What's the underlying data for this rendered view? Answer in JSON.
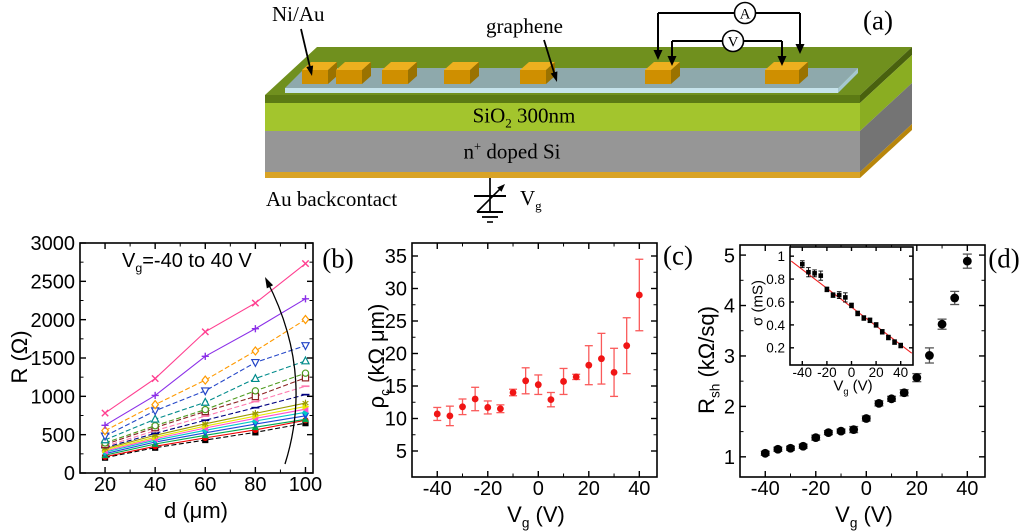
{
  "figure": {
    "panel_labels": {
      "a": "(a)",
      "b": "(b)",
      "c": "(c)",
      "d": "(d)"
    }
  },
  "device": {
    "labels": {
      "ni_au": "Ni/Au",
      "graphene": "graphene",
      "oxide": {
        "pre": "SiO",
        "sub": "2",
        "post": " 300nm"
      },
      "silicon": {
        "pre": "n",
        "sup": "+",
        "post": " doped Si"
      },
      "backcontact": "Au backcontact",
      "gate": {
        "pre": "V",
        "sub": "g"
      },
      "ammeter": "A",
      "voltmeter": "V"
    },
    "colors": {
      "top_face": "#70901e",
      "top_edge_band": "#5c7a14",
      "oxide_front": "#a3c52d",
      "oxide_side": "#8aad22",
      "top_side": "#49610e",
      "si_front": "#969696",
      "si_side": "#747474",
      "gold_front": "#d9a325",
      "gold_side": "#b8860b",
      "contact_front": "#cf8f00",
      "contact_top": "#edb01f",
      "contact_side": "#9a7200",
      "graphene_top": "#8ea9ac",
      "graphene_front": "#c6e3eb",
      "graphene_side": "#a6c7d0",
      "wire": "#000000"
    }
  },
  "chart_data": [
    {
      "id": "b",
      "type": "line",
      "xlabel": "d (μm)",
      "ylabel": "R (Ω)",
      "annotation": {
        "pre": "V",
        "sub": "g",
        "post": "=-40 to 40 V"
      },
      "x": [
        20,
        40,
        60,
        80,
        100
      ],
      "xlim": [
        10,
        103
      ],
      "ylim": [
        0,
        3000
      ],
      "xticks": [
        20,
        40,
        60,
        80,
        100
      ],
      "xminor": [
        30,
        50,
        70,
        90
      ],
      "yticks": [
        0,
        500,
        1000,
        1500,
        2000,
        2500,
        3000
      ],
      "yminor": [
        250,
        750,
        1250,
        1750,
        2250,
        2750
      ],
      "series": [
        {
          "vg": -40,
          "color": "#000000",
          "marker": "square",
          "open": false,
          "dashed": true,
          "values": [
            200,
            330,
            430,
            530,
            650
          ]
        },
        {
          "vg": -35,
          "color": "#f00000",
          "marker": "circle",
          "open": false,
          "dashed": false,
          "values": [
            212,
            348,
            458,
            562,
            688
          ]
        },
        {
          "vg": -30,
          "color": "#00a84f",
          "marker": "tri-up",
          "open": false,
          "dashed": false,
          "values": [
            232,
            378,
            492,
            597,
            700
          ]
        },
        {
          "vg": -25,
          "color": "#1f46d8",
          "marker": "tri-down",
          "open": false,
          "dashed": false,
          "values": [
            252,
            404,
            524,
            638,
            746
          ]
        },
        {
          "vg": -20,
          "color": "#00c8c8",
          "marker": "diamond",
          "open": false,
          "dashed": false,
          "values": [
            272,
            428,
            557,
            678,
            792
          ]
        },
        {
          "vg": -15,
          "color": "#ff50d0",
          "marker": "tri-left",
          "open": false,
          "dashed": false,
          "values": [
            287,
            447,
            587,
            712,
            832
          ]
        },
        {
          "vg": -10,
          "color": "#e8e800",
          "marker": "tri-right",
          "open": false,
          "dashed": false,
          "values": [
            302,
            467,
            612,
            742,
            868
          ]
        },
        {
          "vg": -5,
          "color": "#9c9c00",
          "marker": "star",
          "open": false,
          "dashed": false,
          "values": [
            318,
            492,
            642,
            778,
            912
          ]
        },
        {
          "vg": 0,
          "color": "#000080",
          "marker": "dash",
          "open": false,
          "dashed": true,
          "values": [
            332,
            517,
            688,
            852,
            1022
          ]
        },
        {
          "vg": 5,
          "color": "#ff7ab0",
          "marker": "dash",
          "open": false,
          "dashed": true,
          "values": [
            348,
            552,
            742,
            932,
            1132
          ]
        },
        {
          "vg": 10,
          "color": "#8b2222",
          "marker": "square",
          "open": true,
          "dashed": true,
          "values": [
            372,
            592,
            802,
            998,
            1242
          ]
        },
        {
          "vg": 15,
          "color": "#4f9b1f",
          "marker": "circle",
          "open": true,
          "dashed": true,
          "values": [
            392,
            617,
            827,
            1072,
            1302
          ]
        },
        {
          "vg": 20,
          "color": "#008b8b",
          "marker": "tri-up",
          "open": true,
          "dashed": true,
          "values": [
            432,
            702,
            922,
            1232,
            1462
          ]
        },
        {
          "vg": 25,
          "color": "#2446c8",
          "marker": "tri-down",
          "open": true,
          "dashed": true,
          "values": [
            482,
            812,
            1072,
            1442,
            1662
          ]
        },
        {
          "vg": 30,
          "color": "#ff9a00",
          "marker": "diamond",
          "open": true,
          "dashed": true,
          "values": [
            552,
            892,
            1212,
            1592,
            2002
          ]
        },
        {
          "vg": 35,
          "color": "#8b2fe8",
          "marker": "plus",
          "open": false,
          "dashed": false,
          "values": [
            622,
            1012,
            1522,
            1882,
            2272
          ]
        },
        {
          "vg": 40,
          "color": "#ff3f90",
          "marker": "x",
          "open": false,
          "dashed": false,
          "values": [
            782,
            1232,
            1842,
            2217,
            2732
          ]
        }
      ]
    },
    {
      "id": "c",
      "type": "scatter",
      "xlabel": {
        "pre": "V",
        "sub": "g",
        "post": " (V)"
      },
      "ylabel": {
        "pre": "ρ",
        "sub": "c",
        "post": " (kΩ μm)"
      },
      "point_color": "#f01515",
      "bar_color": "#fa5a5a",
      "xlim": [
        -50,
        47
      ],
      "ylim": [
        1,
        37
      ],
      "xticks": [
        -40,
        -20,
        0,
        20,
        40
      ],
      "xminor": [
        -30,
        -10,
        10,
        30
      ],
      "yticks": [
        5,
        10,
        15,
        20,
        25,
        30,
        35
      ],
      "yminor": [
        7.5,
        12.5,
        17.5,
        22.5,
        27.5,
        32.5
      ],
      "x": [
        -40,
        -35,
        -30,
        -25,
        -20,
        -15,
        -10,
        -5,
        0,
        5,
        10,
        15,
        20,
        25,
        30,
        35,
        40
      ],
      "y": [
        10.7,
        10.4,
        11.8,
        13.0,
        11.7,
        11.5,
        14.0,
        15.8,
        15.2,
        12.9,
        15.7,
        16.4,
        18.2,
        19.2,
        17.1,
        21.2,
        29.0
      ],
      "yerr": [
        1.0,
        1.5,
        1.2,
        1.8,
        1.0,
        0.6,
        0.5,
        2.0,
        1.5,
        1.1,
        2.0,
        0.4,
        3.0,
        3.9,
        3.7,
        4.3,
        5.5
      ]
    },
    {
      "id": "d",
      "type": "scatter",
      "xlabel": {
        "pre": "V",
        "sub": "g",
        "post": " (V)"
      },
      "ylabel": {
        "pre": "R",
        "sub": "sh",
        "post": " (kΩ/sq)"
      },
      "point_color": "#000000",
      "bar_color": "#555555",
      "xlim": [
        -50,
        47
      ],
      "ylim": [
        0.6,
        5.2
      ],
      "xticks": [
        -40,
        -20,
        0,
        20,
        40
      ],
      "xminor": [
        -30,
        -10,
        10,
        30
      ],
      "yticks": [
        1,
        2,
        3,
        4,
        5
      ],
      "yminor": [
        1.5,
        2.5,
        3.5,
        4.5
      ],
      "x": [
        -40,
        -35,
        -30,
        -25,
        -20,
        -15,
        -10,
        -5,
        0,
        5,
        10,
        15,
        20,
        25,
        30,
        35,
        40
      ],
      "y": [
        1.07,
        1.15,
        1.17,
        1.21,
        1.38,
        1.48,
        1.51,
        1.54,
        1.76,
        2.06,
        2.15,
        2.27,
        2.57,
        3.01,
        3.63,
        4.15,
        4.88
      ],
      "yerr": [
        0.04,
        0.04,
        0.04,
        0.04,
        0.05,
        0.04,
        0.04,
        0.06,
        0.05,
        0.05,
        0.05,
        0.06,
        0.08,
        0.15,
        0.1,
        0.13,
        0.14
      ],
      "inset": {
        "type": "scatter",
        "xlabel": {
          "pre": "V",
          "sub": "g",
          "post": " (V)"
        },
        "ylabel": "σ (mS)",
        "point_color": "#000000",
        "fit_color": "#f02020",
        "xlim": [
          -50,
          50
        ],
        "ylim": [
          0.05,
          1.08
        ],
        "xticks": [
          -40,
          -20,
          0,
          20,
          40
        ],
        "yticks": [
          0.2,
          0.4,
          0.6,
          0.8,
          1.0
        ],
        "x": [
          -40,
          -35,
          -30,
          -25,
          -20,
          -15,
          -10,
          -5,
          0,
          5,
          10,
          15,
          20,
          25,
          30,
          35,
          40
        ],
        "y": [
          0.93,
          0.86,
          0.85,
          0.83,
          0.71,
          0.66,
          0.66,
          0.64,
          0.57,
          0.5,
          0.46,
          0.44,
          0.4,
          0.34,
          0.29,
          0.25,
          0.22
        ],
        "yerr": [
          0.03,
          0.04,
          0.03,
          0.04,
          0.02,
          0.02,
          0.03,
          0.04,
          0.02,
          0.02,
          0.02,
          0.02,
          0.02,
          0.02,
          0.02,
          0.02,
          0.02
        ],
        "fit": {
          "x": [
            -49,
            49
          ],
          "y": [
            0.957,
            0.153
          ]
        }
      }
    }
  ]
}
